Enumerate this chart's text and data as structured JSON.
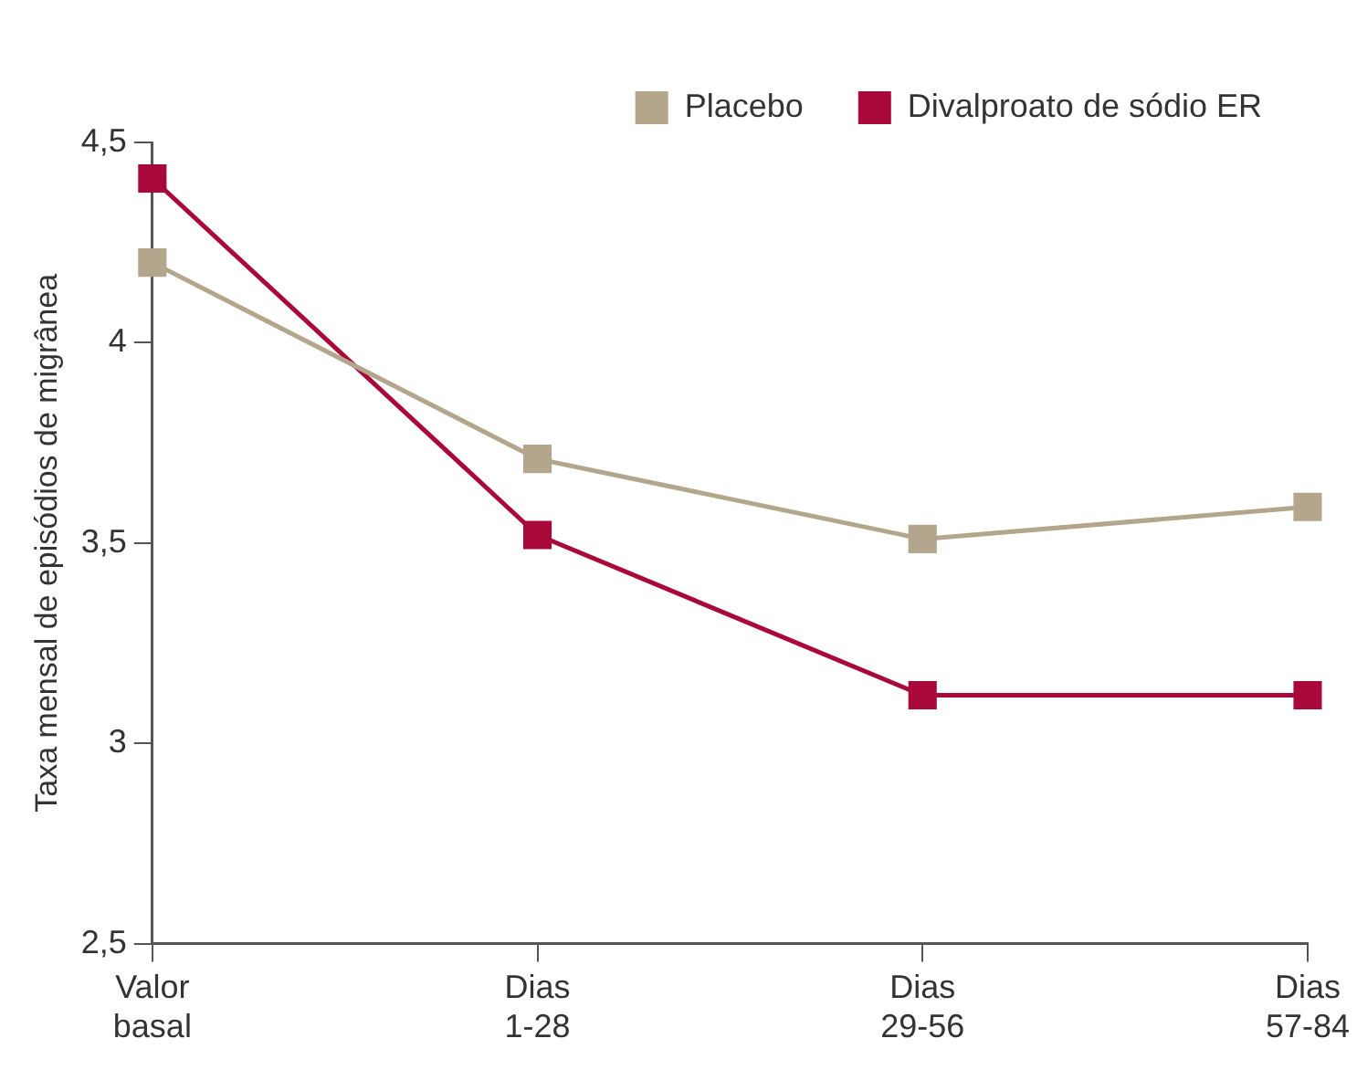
{
  "chart_data": {
    "type": "line",
    "ylabel": "Taxa mensal de episódios de migrânea",
    "categories": [
      "Valor basal",
      "Dias 1-28",
      "Dias 29-56",
      "Dias 57-84"
    ],
    "series": [
      {
        "name": "Placebo",
        "color": "#b3a68c",
        "values": [
          4.2,
          3.71,
          3.51,
          3.59
        ]
      },
      {
        "name": "Divalproato de sódio ER",
        "color": "#a8093a",
        "values": [
          4.41,
          3.52,
          3.12,
          3.12
        ]
      }
    ],
    "ylim": [
      2.5,
      4.5
    ],
    "yticks": [
      {
        "value": 2.5,
        "label": "2,5"
      },
      {
        "value": 3,
        "label": "3"
      },
      {
        "value": 3.5,
        "label": "3,5"
      },
      {
        "value": 4,
        "label": "4"
      },
      {
        "value": 4.5,
        "label": "4,5"
      }
    ],
    "grid": false,
    "legend": "top right",
    "marker": "square",
    "line_style": "solid"
  }
}
